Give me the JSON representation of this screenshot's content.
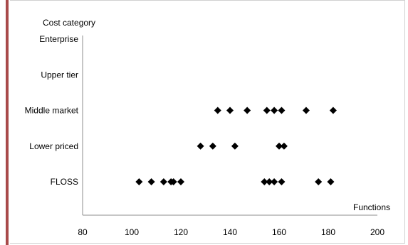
{
  "chart_data": {
    "type": "scatter",
    "ylabel": "Cost category",
    "xlabel": "Functions",
    "categories": [
      "FLOSS",
      "Lower priced",
      "Middle market",
      "Upper tier",
      "Enterprise"
    ],
    "xlim": [
      80,
      200
    ],
    "xticks": [
      "80",
      "100",
      "120",
      "140",
      "160",
      "180",
      "200"
    ],
    "marker": "diamond",
    "marker_color": "#000000",
    "points": [
      {
        "x": 103,
        "y": "FLOSS"
      },
      {
        "x": 108,
        "y": "FLOSS"
      },
      {
        "x": 113,
        "y": "FLOSS"
      },
      {
        "x": 116,
        "y": "FLOSS"
      },
      {
        "x": 117,
        "y": "FLOSS"
      },
      {
        "x": 120,
        "y": "FLOSS"
      },
      {
        "x": 154,
        "y": "FLOSS"
      },
      {
        "x": 156,
        "y": "FLOSS"
      },
      {
        "x": 158,
        "y": "FLOSS"
      },
      {
        "x": 161,
        "y": "FLOSS"
      },
      {
        "x": 176,
        "y": "FLOSS"
      },
      {
        "x": 181,
        "y": "FLOSS"
      },
      {
        "x": 128,
        "y": "Lower priced"
      },
      {
        "x": 133,
        "y": "Lower priced"
      },
      {
        "x": 142,
        "y": "Lower priced"
      },
      {
        "x": 160,
        "y": "Lower priced"
      },
      {
        "x": 162,
        "y": "Lower priced"
      },
      {
        "x": 135,
        "y": "Middle market"
      },
      {
        "x": 140,
        "y": "Middle market"
      },
      {
        "x": 147,
        "y": "Middle market"
      },
      {
        "x": 155,
        "y": "Middle market"
      },
      {
        "x": 158,
        "y": "Middle market"
      },
      {
        "x": 161,
        "y": "Middle market"
      },
      {
        "x": 171,
        "y": "Middle market"
      },
      {
        "x": 182,
        "y": "Middle market"
      }
    ],
    "grid": false,
    "accent_color": "#a84a4a"
  }
}
